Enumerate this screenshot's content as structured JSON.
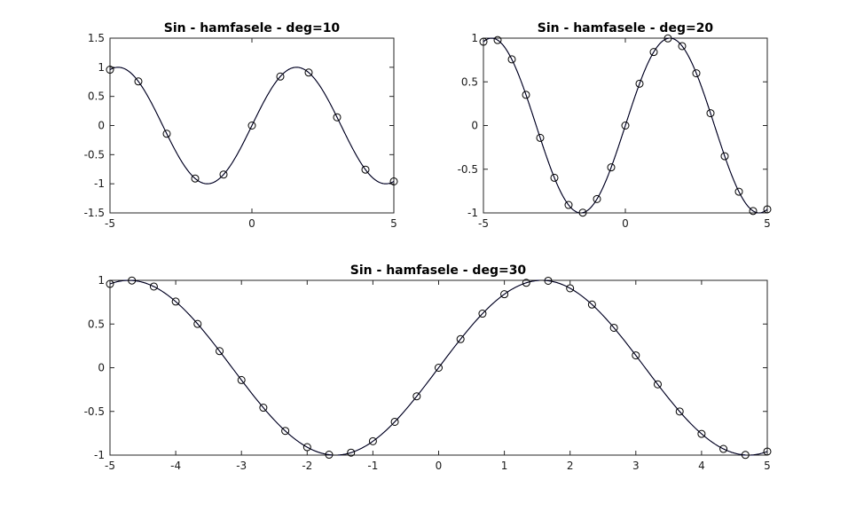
{
  "chart_data": [
    {
      "type": "line",
      "title": "Sin - hamfasele - deg=10",
      "xlabel": "",
      "ylabel": "",
      "xlim": [
        -5,
        5
      ],
      "ylim": [
        -1.5,
        1.5
      ],
      "xticks": [
        -5,
        0,
        5
      ],
      "xtick_labels": [
        "-5",
        "0",
        "5"
      ],
      "yticks": [
        1.5,
        1,
        0.5,
        0,
        -0.5,
        -1,
        -1.5
      ],
      "ytick_labels": [
        "1.5",
        "1",
        "0.5",
        "0",
        "-0.5",
        "-1",
        "-1.5"
      ],
      "grid": false,
      "series": [
        {
          "kind": "interpolant",
          "color": "#0000ff",
          "x": [
            -5,
            5
          ]
        },
        {
          "kind": "reference",
          "color": "#000000",
          "x": [
            -5,
            5
          ]
        },
        {
          "kind": "samples",
          "marker": "circle",
          "color": "#000000",
          "x": [
            -5,
            -4,
            -3,
            -2,
            -1,
            0,
            1,
            2,
            3,
            4,
            5
          ],
          "y": [
            0.959,
            0.757,
            -0.141,
            -0.909,
            -0.841,
            0,
            0.841,
            0.909,
            0.141,
            -0.757,
            -0.959
          ]
        }
      ]
    },
    {
      "type": "line",
      "title": "Sin - hamfasele - deg=20",
      "xlabel": "",
      "ylabel": "",
      "xlim": [
        -5,
        5
      ],
      "ylim": [
        -1,
        1
      ],
      "xticks": [
        -5,
        0,
        5
      ],
      "xtick_labels": [
        "-5",
        "0",
        "5"
      ],
      "yticks": [
        1,
        0.5,
        0,
        -0.5,
        -1
      ],
      "ytick_labels": [
        "1",
        "0.5",
        "0",
        "-0.5",
        "-1"
      ],
      "grid": false,
      "series": [
        {
          "kind": "interpolant",
          "color": "#0000ff",
          "x": [
            -5,
            5
          ]
        },
        {
          "kind": "reference",
          "color": "#000000",
          "x": [
            -5,
            5
          ]
        },
        {
          "kind": "samples",
          "marker": "circle",
          "color": "#000000",
          "x": [
            -5,
            -4.5,
            -4,
            -3.5,
            -3,
            -2.5,
            -2,
            -1.5,
            -1,
            -0.5,
            0,
            0.5,
            1,
            1.5,
            2,
            2.5,
            3,
            3.5,
            4,
            4.5,
            5
          ],
          "y": [
            0.959,
            0.978,
            0.757,
            0.351,
            -0.141,
            -0.598,
            -0.909,
            -0.997,
            -0.841,
            -0.479,
            0,
            0.479,
            0.841,
            0.997,
            0.909,
            0.598,
            0.141,
            -0.351,
            -0.757,
            -0.978,
            -0.959
          ]
        }
      ]
    },
    {
      "type": "line",
      "title": "Sin - hamfasele - deg=30",
      "xlabel": "",
      "ylabel": "",
      "xlim": [
        -5,
        5
      ],
      "ylim": [
        -1,
        1
      ],
      "xticks": [
        -5,
        -4,
        -3,
        -2,
        -1,
        0,
        1,
        2,
        3,
        4,
        5
      ],
      "xtick_labels": [
        "-5",
        "-4",
        "-3",
        "-2",
        "-1",
        "0",
        "1",
        "2",
        "3",
        "4",
        "5"
      ],
      "yticks": [
        1,
        0.5,
        0,
        -0.5,
        -1
      ],
      "ytick_labels": [
        "1",
        "0.5",
        "0",
        "-0.5",
        "-1"
      ],
      "grid": false,
      "series": [
        {
          "kind": "interpolant",
          "color": "#0000ff",
          "x": [
            -5,
            5
          ]
        },
        {
          "kind": "reference",
          "color": "#000000",
          "x": [
            -5,
            5
          ]
        },
        {
          "kind": "samples",
          "marker": "circle",
          "color": "#000000",
          "x": [
            -5,
            -4.667,
            -4.333,
            -4,
            -3.667,
            -3.333,
            -3,
            -2.667,
            -2.333,
            -2,
            -1.667,
            -1.333,
            -1,
            -0.667,
            -0.333,
            0,
            0.333,
            0.667,
            1,
            1.333,
            1.667,
            2,
            2.333,
            2.667,
            3,
            3.333,
            3.667,
            4,
            4.333,
            4.667,
            5
          ],
          "y": [
            0.959,
            0.998,
            0.929,
            0.757,
            0.501,
            0.19,
            -0.141,
            -0.457,
            -0.723,
            -0.909,
            -0.995,
            -0.972,
            -0.841,
            -0.619,
            -0.327,
            0,
            0.327,
            0.619,
            0.841,
            0.972,
            0.995,
            0.909,
            0.723,
            0.457,
            0.141,
            -0.19,
            -0.501,
            -0.757,
            -0.929,
            -0.998,
            -0.959
          ]
        }
      ]
    }
  ]
}
